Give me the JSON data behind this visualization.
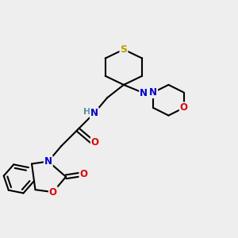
{
  "bg_color": "#eeeeee",
  "atom_colors": {
    "S": "#b8a000",
    "N": "#0000cc",
    "O": "#dd0000",
    "C": "#000000",
    "H": "#5590a0"
  },
  "bond_color": "#000000",
  "bond_width": 1.5,
  "figsize": [
    3.0,
    3.0
  ],
  "dpi": 100
}
